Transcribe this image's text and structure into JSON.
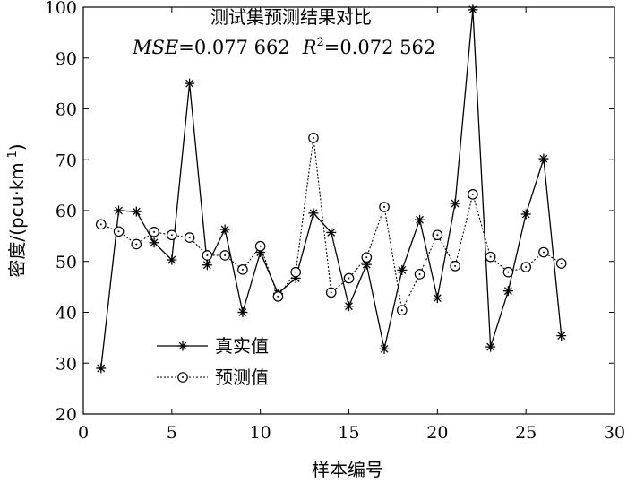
{
  "chart_data": {
    "type": "line",
    "title": "测试集预测结果对比",
    "subtitle": {
      "mse_label": "MSE",
      "mse_value": "=0.077 662",
      "r2_label": "R",
      "r2_sup": "2",
      "r2_value": "=0.072 562"
    },
    "xlabel": "样本编号",
    "ylabel": {
      "main": "密度/(pcu·km",
      "sup": "-1",
      "end": ")"
    },
    "xlim": [
      0,
      30
    ],
    "ylim": [
      20,
      100
    ],
    "xticks": [
      0,
      5,
      10,
      15,
      20,
      25,
      30
    ],
    "yticks": [
      20,
      30,
      40,
      50,
      60,
      70,
      80,
      90,
      100
    ],
    "grid": false,
    "legend_position": "lower-left",
    "x": [
      1,
      2,
      3,
      4,
      5,
      6,
      7,
      8,
      9,
      10,
      11,
      12,
      13,
      14,
      15,
      16,
      17,
      18,
      19,
      20,
      21,
      22,
      23,
      24,
      25,
      26,
      27
    ],
    "series": [
      {
        "name": "真实值",
        "marker": "asterisk",
        "line": "solid",
        "color": "#000000",
        "values": [
          29.0,
          60.0,
          59.8,
          53.7,
          50.3,
          85.0,
          49.3,
          56.3,
          40.0,
          51.8,
          43.7,
          46.7,
          59.5,
          55.7,
          41.2,
          49.4,
          32.8,
          48.3,
          58.2,
          42.8,
          61.4,
          99.5,
          33.2,
          44.2,
          59.3,
          70.2,
          35.4
        ]
      },
      {
        "name": "预测值",
        "marker": "circle",
        "line": "dotted",
        "color": "#000000",
        "values": [
          57.3,
          55.9,
          53.4,
          55.8,
          55.2,
          54.7,
          51.2,
          51.2,
          48.4,
          53.0,
          43.1,
          47.9,
          74.3,
          43.9,
          46.7,
          50.8,
          60.7,
          40.4,
          47.5,
          55.2,
          49.1,
          63.2,
          50.9,
          47.9,
          48.9,
          51.8,
          49.6
        ]
      }
    ]
  }
}
